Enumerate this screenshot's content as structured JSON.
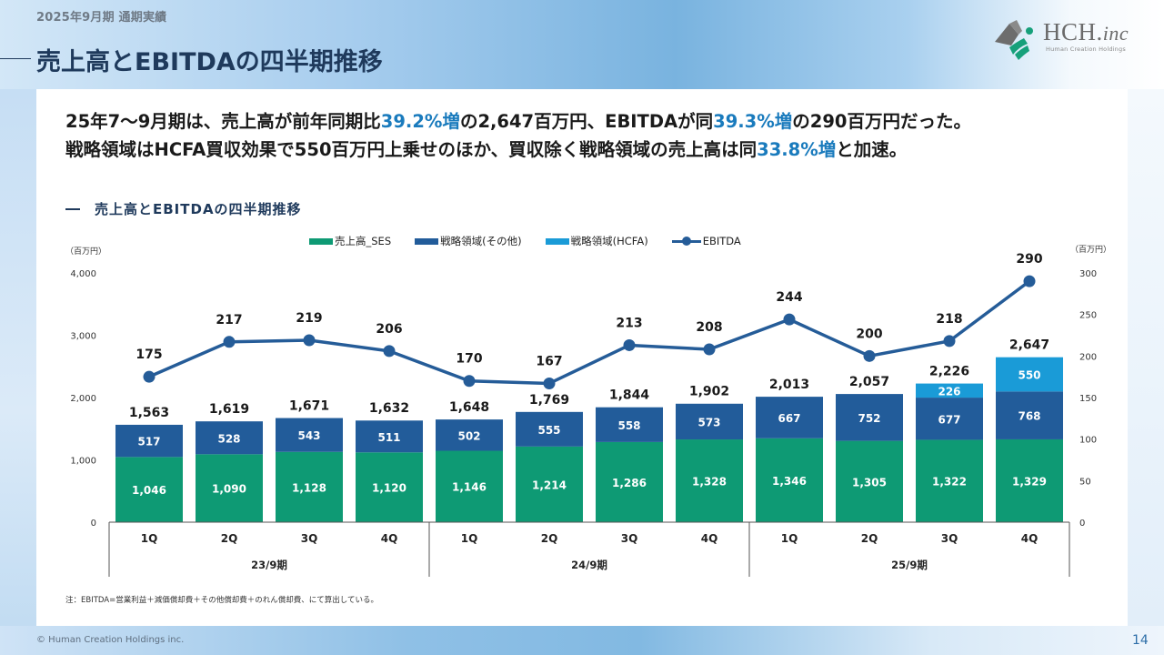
{
  "header": {
    "subheading": "2025年9月期 通期実績",
    "title": "売上高とEBITDAの四半期推移",
    "logo": {
      "main": "HCH.",
      "suffix": "inc",
      "sub": "Human Creation Holdings",
      "icon": "hch-logo-icon"
    }
  },
  "lead": {
    "line1": [
      {
        "text": "25年7〜9月期は、売上高が前年同期比",
        "hl": false
      },
      {
        "text": "39.2%増",
        "hl": true
      },
      {
        "text": "の2,647百万円、EBITDAが同",
        "hl": false
      },
      {
        "text": "39.3%増",
        "hl": true
      },
      {
        "text": "の290百万円だった。",
        "hl": false
      }
    ],
    "line2": [
      {
        "text": "戦略領域はHCFA買収効果で550百万円上乗せのほか、買収除く戦略領域の売上高は同",
        "hl": false
      },
      {
        "text": "33.8%増",
        "hl": true
      },
      {
        "text": "と加速。",
        "hl": false
      }
    ],
    "highlight_color": "#1a7bbd"
  },
  "chart_data": {
    "type": "bar",
    "subtype": "stacked-bar-with-line",
    "title": "売上高とEBITDAの四半期推移",
    "categories": [
      "1Q",
      "2Q",
      "3Q",
      "4Q",
      "1Q",
      "2Q",
      "3Q",
      "4Q",
      "1Q",
      "2Q",
      "3Q",
      "4Q"
    ],
    "groups": [
      {
        "label": "23/9期",
        "span": 4
      },
      {
        "label": "24/9期",
        "span": 4
      },
      {
        "label": "25/9期",
        "span": 4
      }
    ],
    "series": [
      {
        "name": "売上高_SES",
        "type": "bar",
        "axis": "left",
        "color": "#0e9a74",
        "values": [
          1046,
          1090,
          1128,
          1120,
          1146,
          1214,
          1286,
          1328,
          1346,
          1305,
          1322,
          1329
        ],
        "labels": [
          "1,046",
          "1,090",
          "1,128",
          "1,120",
          "1,146",
          "1,214",
          "1,286",
          "1,328",
          "1,346",
          "1,305",
          "1,322",
          "1,329"
        ]
      },
      {
        "name": "戦略領域(その他)",
        "type": "bar",
        "axis": "left",
        "color": "#225c9a",
        "values": [
          517,
          528,
          543,
          511,
          502,
          555,
          558,
          573,
          667,
          752,
          677,
          768
        ],
        "labels": [
          "517",
          "528",
          "543",
          "511",
          "502",
          "555",
          "558",
          "573",
          "667",
          "752",
          "677",
          "768"
        ]
      },
      {
        "name": "戦略領域(HCFA)",
        "type": "bar",
        "axis": "left",
        "color": "#1a9bd7",
        "values": [
          0,
          0,
          0,
          0,
          0,
          0,
          0,
          0,
          0,
          0,
          226,
          550
        ],
        "labels": [
          "",
          "",
          "",
          "",
          "",
          "",
          "",
          "",
          "",
          "",
          "226",
          "550"
        ]
      },
      {
        "name": "EBITDA",
        "type": "line",
        "axis": "right",
        "color": "#255c98",
        "values": [
          175,
          217,
          219,
          206,
          170,
          167,
          213,
          208,
          244,
          200,
          218,
          290
        ],
        "labels": [
          "175",
          "217",
          "219",
          "206",
          "170",
          "167",
          "213",
          "208",
          "244",
          "200",
          "218",
          "290"
        ]
      }
    ],
    "totals": [
      1563,
      1619,
      1671,
      1632,
      1648,
      1769,
      1844,
      1902,
      2013,
      2057,
      2226,
      2647
    ],
    "total_labels": [
      "1,563",
      "1,619",
      "1,671",
      "1,632",
      "1,648",
      "1,769",
      "1,844",
      "1,902",
      "2,013",
      "2,057",
      "2,226",
      "2,647"
    ],
    "y_left": {
      "unit": "（百万円）",
      "range": [
        0,
        4000
      ],
      "ticks": [
        0,
        1000,
        2000,
        3000,
        4000
      ],
      "tick_labels": [
        "0",
        "1,000",
        "2,000",
        "3,000",
        "4,000"
      ]
    },
    "y_right": {
      "unit": "（百万円）",
      "range": [
        0,
        300
      ],
      "ticks": [
        0,
        50,
        100,
        150,
        200,
        250,
        300
      ],
      "tick_labels": [
        "0",
        "50",
        "100",
        "150",
        "200",
        "250",
        "300"
      ]
    },
    "grid": false,
    "legend_position": "top-center"
  },
  "footnote": "注：EBITDA=営業利益＋減価償却費＋その他償却費＋のれん償却費、にて算出している。",
  "footer": {
    "copyright": "© Human Creation Holdings inc.",
    "page": "14"
  }
}
